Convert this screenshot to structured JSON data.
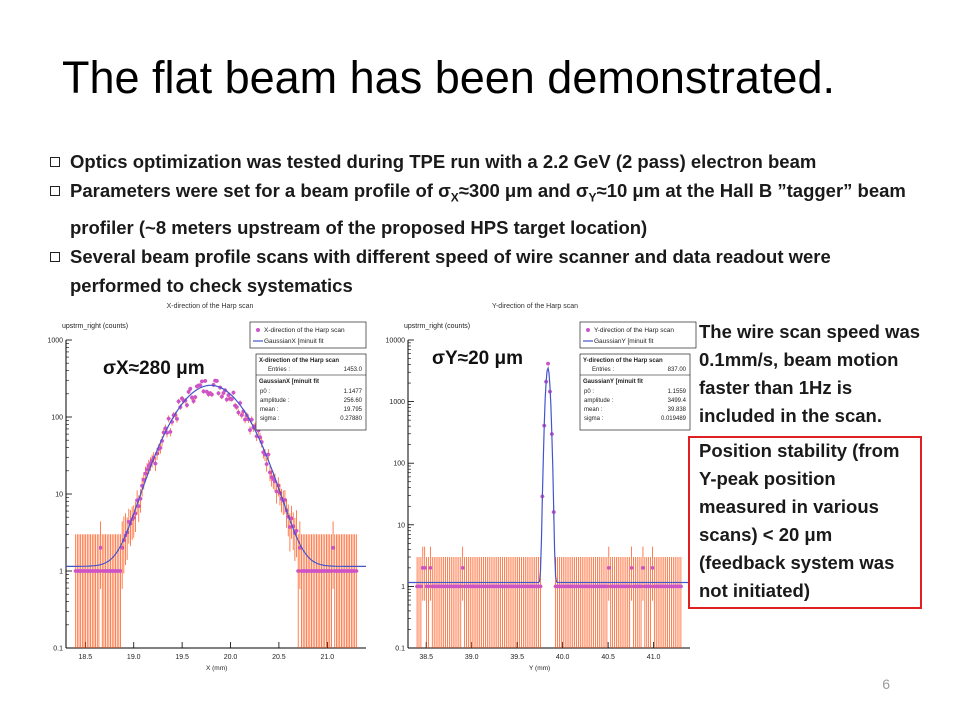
{
  "slide": {
    "title": "The flat beam has been demonstrated.",
    "page_number": "6"
  },
  "bullets": [
    {
      "text": "Optics optimization was tested during TPE run with a 2.2 GeV (2 pass) electron beam"
    },
    {
      "pre": "Parameters were set for a beam profile of σ",
      "sub1": "X",
      "mid": "≈300 μm and σ",
      "sub2": "Y",
      "post": "≈10 μm at the Hall B ”tagger” beam profiler (~8 meters upstream of the proposed HPS target location)"
    },
    {
      "text": "Several beam profile scans with different speed of wire scanner and data readout were performed to check systematics"
    }
  ],
  "side_note": "The wire scan speed was 0.1mm/s, beam motion faster than 1Hz is included in the scan.",
  "red_note": "Position stability (from Y-peak position measured in various scans)  < 20 μm (feedback system was not initiated)",
  "colors": {
    "data": "#cc55cc",
    "errorbar": "#ff4400",
    "fit": "#4455cc",
    "highlight_border": "#e02020"
  },
  "chart_data": [
    {
      "type": "scatter",
      "title": "X-direction of the Harp scan",
      "ylabel": "upstrm_right (counts)",
      "xlabel": "X (mm)",
      "annotation": "σX≈280 μm",
      "y_scale": "log",
      "xlim": [
        18.3,
        21.4
      ],
      "ylim": [
        0.1,
        1000
      ],
      "x_ticks": [
        "18.5",
        "19.0",
        "19.5",
        "20.0",
        "20.5",
        "21.0"
      ],
      "y_ticks": [
        "0.1",
        "1",
        "10",
        "100",
        "1000"
      ],
      "legend": {
        "data_label": "X-direction of the Harp scan",
        "fit_label": "GaussianX [minuit fit"
      },
      "stats": {
        "title": "X-direction of the Harp scan",
        "rows": [
          [
            "Entries :",
            "1453.0"
          ]
        ],
        "fit_title": "GaussianX [minuit fit",
        "fit_rows": [
          [
            "p0 :",
            "1.1477"
          ],
          [
            "amplitude :",
            "256.60"
          ],
          [
            "mean :",
            "19.795"
          ],
          [
            "sigma :",
            "0.27880"
          ]
        ]
      },
      "fit": {
        "mean": 19.795,
        "sigma": 0.2788,
        "amplitude": 256.6,
        "baseline": 1.1477
      }
    },
    {
      "type": "scatter",
      "title": "Y-direction of the Harp scan",
      "ylabel": "upstrm_right (counts)",
      "xlabel": "Y (mm)",
      "annotation": "σY≈20 μm",
      "y_scale": "log",
      "xlim": [
        38.3,
        41.4
      ],
      "ylim": [
        0.1,
        10000
      ],
      "x_ticks": [
        "38.5",
        "39.0",
        "39.5",
        "40.0",
        "40.5",
        "41.0"
      ],
      "y_ticks": [
        "0.1",
        "1",
        "10",
        "100",
        "1000",
        "10000"
      ],
      "legend": {
        "data_label": "Y-direction of the Harp scan",
        "fit_label": "GaussianY [minuit fit"
      },
      "stats": {
        "title": "Y-direction of the Harp scan",
        "rows": [
          [
            "Entries :",
            "837.00"
          ]
        ],
        "fit_title": "GaussianY [minuit fit",
        "fit_rows": [
          [
            "p0 :",
            "1.1559"
          ],
          [
            "amplitude :",
            "3499.4"
          ],
          [
            "mean :",
            "39.838"
          ],
          [
            "sigma :",
            "0.019489"
          ]
        ]
      },
      "fit": {
        "mean": 39.838,
        "sigma": 0.0195,
        "amplitude": 3499.4,
        "baseline": 1.1559
      }
    }
  ]
}
